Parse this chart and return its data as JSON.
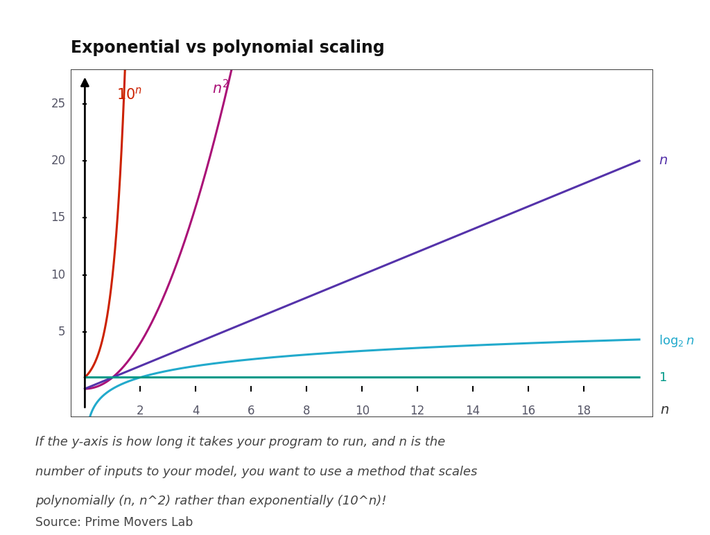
{
  "title": "Exponential vs polynomial scaling",
  "title_fontsize": 17,
  "title_fontweight": "bold",
  "background_color": "#ffffff",
  "plot_bg_color": "#ffffff",
  "grid_color": "#cccccc",
  "xlim": [
    -0.5,
    20.5
  ],
  "ylim": [
    -2.5,
    28
  ],
  "xticks": [
    2,
    4,
    6,
    8,
    10,
    12,
    14,
    16,
    18
  ],
  "yticks": [
    5,
    10,
    15,
    20,
    25
  ],
  "tick_label_color": "#555566",
  "curve_exp_color": "#cc2200",
  "curve_sq_color": "#aa1177",
  "curve_n_color": "#5533aa",
  "curve_log_color": "#22aacc",
  "curve_one_color": "#009988",
  "annotation_line1": "If the y-axis is how long it takes your program to run, and n is the",
  "annotation_line2": "number of inputs to your model, you want to use a method that scales",
  "annotation_line3": "polynomially (n, n^2) rather than exponentially (10^n)!",
  "source_text": "Source: Prime Movers Lab"
}
